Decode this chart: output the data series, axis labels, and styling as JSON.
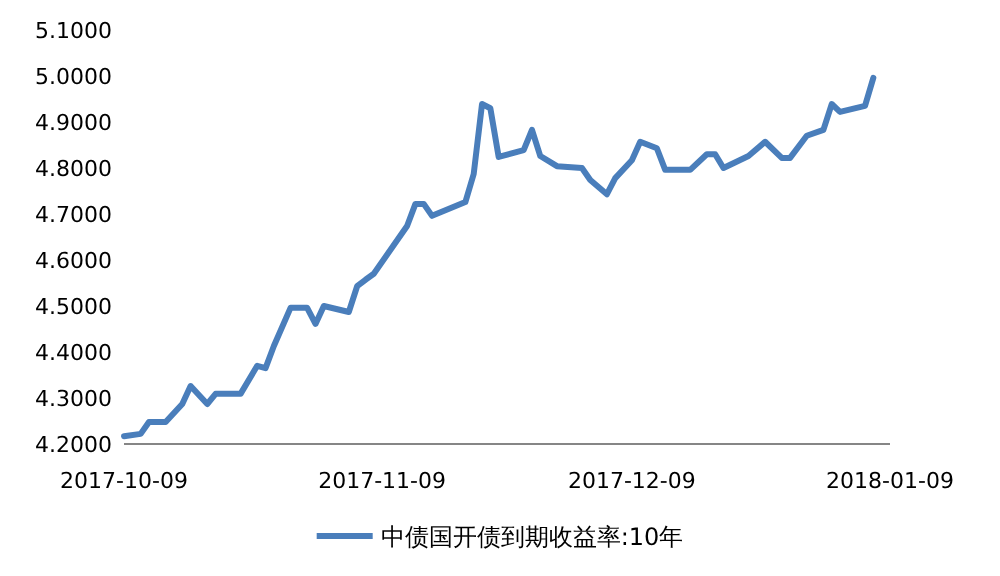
{
  "chart_data": {
    "type": "line",
    "x": [
      "2017-10-09",
      "2017-10-11",
      "2017-10-12",
      "2017-10-14",
      "2017-10-16",
      "2017-10-17",
      "2017-10-19",
      "2017-10-20",
      "2017-10-23",
      "2017-10-25",
      "2017-10-26",
      "2017-10-27",
      "2017-10-29",
      "2017-10-31",
      "2017-11-01",
      "2017-11-02",
      "2017-11-05",
      "2017-11-06",
      "2017-11-07",
      "2017-11-08",
      "2017-11-12",
      "2017-11-13",
      "2017-11-14",
      "2017-11-15",
      "2017-11-19",
      "2017-11-20",
      "2017-11-21",
      "2017-11-22",
      "2017-11-23",
      "2017-11-26",
      "2017-11-27",
      "2017-11-28",
      "2017-11-30",
      "2017-12-03",
      "2017-12-04",
      "2017-12-06",
      "2017-12-07",
      "2017-12-09",
      "2017-12-10",
      "2017-12-12",
      "2017-12-13",
      "2017-12-16",
      "2017-12-18",
      "2017-12-19",
      "2017-12-20",
      "2017-12-23",
      "2017-12-25",
      "2017-12-27",
      "2017-12-28",
      "2017-12-30",
      "2018-01-01",
      "2018-01-02",
      "2018-01-03",
      "2018-01-06",
      "2018-01-07"
    ],
    "series": [
      {
        "name": "中债国开债到期收益率:10年",
        "color": "#4a7ebb",
        "values": [
          4.217,
          4.222,
          4.248,
          4.248,
          4.287,
          4.326,
          4.287,
          4.309,
          4.309,
          4.37,
          4.365,
          4.413,
          4.496,
          4.496,
          4.461,
          4.5,
          4.487,
          4.543,
          4.557,
          4.57,
          4.674,
          4.722,
          4.722,
          4.696,
          4.726,
          4.787,
          4.939,
          4.93,
          4.824,
          4.839,
          4.883,
          4.826,
          4.804,
          4.8,
          4.774,
          4.743,
          4.778,
          4.817,
          4.857,
          4.843,
          4.796,
          4.796,
          4.83,
          4.83,
          4.8,
          4.826,
          4.857,
          4.822,
          4.822,
          4.87,
          4.883,
          4.939,
          4.922,
          4.935,
          4.996
        ]
      }
    ],
    "xlim": [
      "2017-10-09",
      "2018-01-09"
    ],
    "xticks": [
      "2017-10-09",
      "2017-11-09",
      "2017-12-09",
      "2018-01-09"
    ],
    "ylim": [
      4.2,
      5.1
    ],
    "yticks": [
      {
        "value": 4.2,
        "label": "4.2000"
      },
      {
        "value": 4.3,
        "label": "4.3000"
      },
      {
        "value": 4.4,
        "label": "4.4000"
      },
      {
        "value": 4.5,
        "label": "4.5000"
      },
      {
        "value": 4.6,
        "label": "4.6000"
      },
      {
        "value": 4.7,
        "label": "4.7000"
      },
      {
        "value": 4.8,
        "label": "4.8000"
      },
      {
        "value": 4.9,
        "label": "4.9000"
      },
      {
        "value": 5.0,
        "label": "5.0000"
      },
      {
        "value": 5.1,
        "label": "5.1000"
      }
    ],
    "grid": false,
    "legend": "bottom",
    "marker": "none",
    "line_style": "solid"
  }
}
